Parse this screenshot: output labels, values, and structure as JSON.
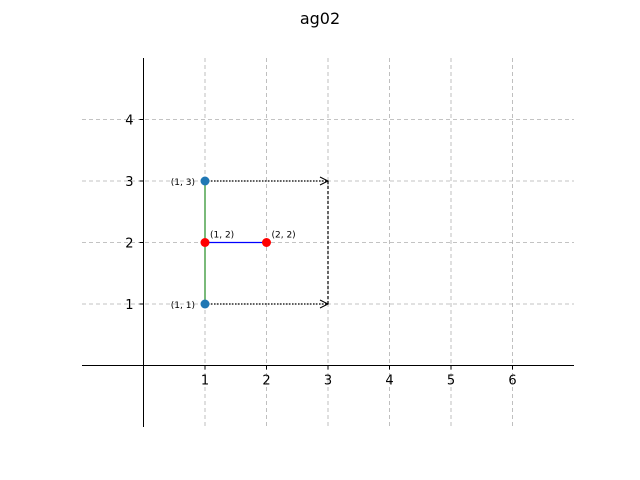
{
  "chart_data": {
    "type": "line",
    "title": "ag02",
    "xlabel": "",
    "ylabel": "",
    "xlim": [
      -1,
      7
    ],
    "ylim": [
      -1,
      5
    ],
    "xticks": [
      1,
      2,
      3,
      4,
      5,
      6
    ],
    "yticks": [
      1,
      2,
      3,
      4
    ],
    "grid": true,
    "grid_style": "dashed",
    "colors": {
      "blue_point": "#1f77b4",
      "red_point": "#ff0000",
      "green_line": "#228b22",
      "blue_line": "#0000ff",
      "arrow": "#000000",
      "grid": "#b0b0b0"
    },
    "blue_points": [
      {
        "x": 1,
        "y": 1,
        "label": "(1, 1)"
      },
      {
        "x": 1,
        "y": 3,
        "label": "(1, 3)"
      }
    ],
    "red_points": [
      {
        "x": 1,
        "y": 2,
        "label": "(1, 2)"
      },
      {
        "x": 2,
        "y": 2,
        "label": "(2, 2)"
      }
    ],
    "segments": [
      {
        "from": [
          1,
          1
        ],
        "to": [
          1,
          3
        ],
        "color": "#228b22",
        "style": "solid"
      },
      {
        "from": [
          1,
          2
        ],
        "to": [
          2,
          2
        ],
        "color": "#0000ff",
        "style": "solid"
      },
      {
        "from": [
          3,
          1
        ],
        "to": [
          3,
          3
        ],
        "color": "#000000",
        "style": "dashed"
      }
    ],
    "arrows": [
      {
        "from": [
          1,
          3
        ],
        "to": [
          3,
          3
        ],
        "style": "dotted"
      },
      {
        "from": [
          1,
          1
        ],
        "to": [
          3,
          1
        ],
        "style": "dotted"
      }
    ]
  }
}
